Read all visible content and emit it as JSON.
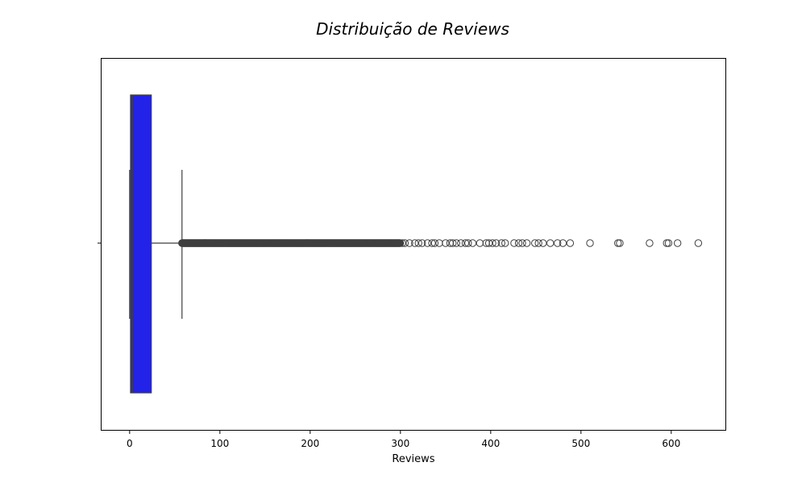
{
  "chart_data": {
    "type": "box",
    "title": "Distribuição de Reviews",
    "xlabel": "Reviews",
    "ylabel": "",
    "xlim": [
      -32,
      660
    ],
    "xticks": [
      0,
      100,
      200,
      300,
      400,
      500,
      600
    ],
    "xtick_labels": [
      "0",
      "100",
      "200",
      "300",
      "400",
      "500",
      "600"
    ],
    "box": {
      "color": "#2222e8",
      "min": 0,
      "q1": 1,
      "median": 3,
      "q3": 24,
      "whisker_high": 58
    },
    "outliers": {
      "dense_range": [
        58,
        300
      ],
      "sparse_values": [
        302,
        305,
        310,
        316,
        320,
        324,
        330,
        335,
        338,
        343,
        350,
        355,
        358,
        362,
        367,
        372,
        375,
        380,
        388,
        395,
        398,
        402,
        406,
        412,
        416,
        426,
        431,
        435,
        440,
        449,
        453,
        458,
        466,
        474,
        480,
        488,
        510,
        541,
        543,
        576,
        595,
        597,
        607,
        630
      ]
    },
    "grid": false,
    "legend": "none"
  }
}
